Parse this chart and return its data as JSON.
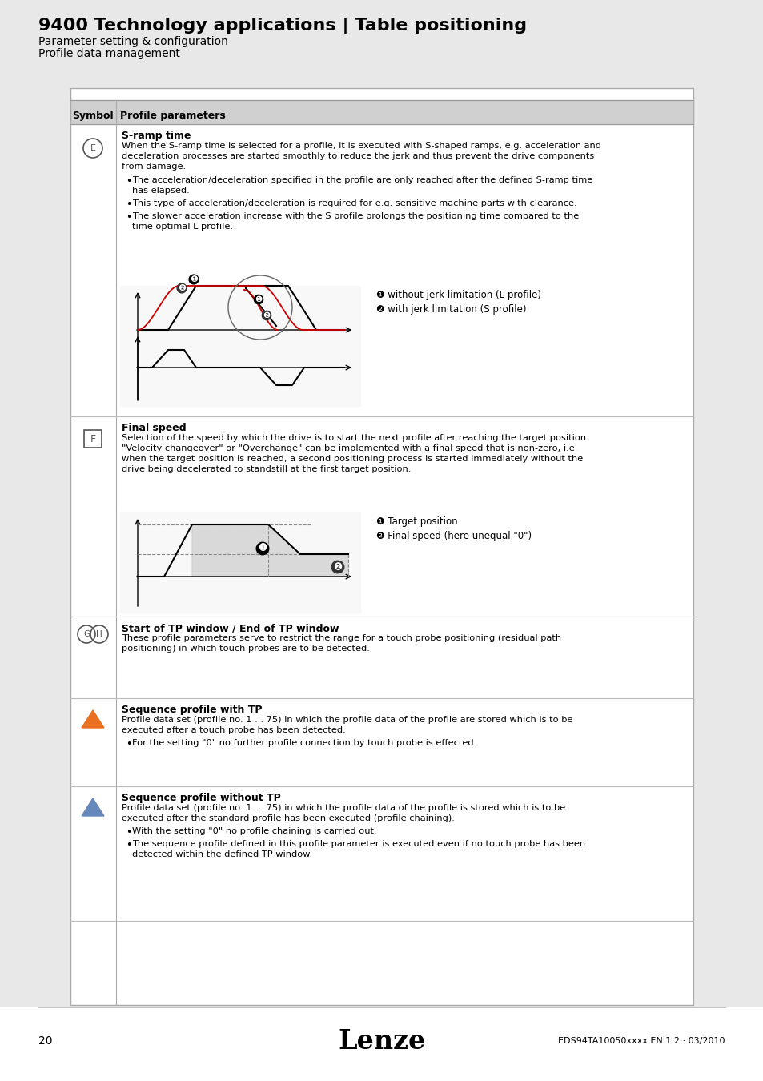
{
  "title": "9400 Technology applications | Table positioning",
  "subtitle1": "Parameter setting & configuration",
  "subtitle2": "Profile data management",
  "bg_color": "#e8e8e8",
  "page_bg": "#ffffff",
  "header_bg": "#d0d0d0",
  "row_e_title": "S-ramp time",
  "row_e_text": "When the S-ramp time is selected for a profile, it is executed with S-shaped ramps, e.g. acceleration and\ndeceleration processes are started smoothly to reduce the jerk and thus prevent the drive components\nfrom damage.",
  "row_e_bullets": [
    "The acceleration/deceleration specified in the profile are only reached after the defined S-ramp time\nhas elapsed.",
    "This type of acceleration/deceleration is required for e.g. sensitive machine parts with clearance.",
    "The slower acceleration increase with the S profile prolongs the positioning time compared to the\ntime optimal L profile."
  ],
  "legend1_1": "❶ without jerk limitation (L profile)",
  "legend1_2": "❷ with jerk limitation (S profile)",
  "row_f_title": "Final speed",
  "row_f_text": "Selection of the speed by which the drive is to start the next profile after reaching the target position.\n\"Velocity changeover\" or \"Overchange\" can be implemented with a final speed that is non-zero, i.e.\nwhen the target position is reached, a second positioning process is started immediately without the\ndrive being decelerated to standstill at the first target position:",
  "legend2_1": "❶ Target position",
  "legend2_2": "❷ Final speed (here unequal \"0\")",
  "row_gh_title": "Start of TP window / End of TP window",
  "row_gh_text": "These profile parameters serve to restrict the range for a touch probe positioning (residual path\npositioning) in which touch probes are to be detected.",
  "row_orange_title": "Sequence profile with TP",
  "row_orange_text": "Profile data set (profile no. 1 ... 75) in which the profile data of the profile are stored which is to be\nexecuted after a touch probe has been detected.",
  "row_orange_bullet": "For the setting \"0\" no further profile connection by touch probe is effected.",
  "row_blue_title": "Sequence profile without TP",
  "row_blue_text": "Profile data set (profile no. 1 ... 75) in which the profile data of the profile is stored which is to be\nexecuted after the standard profile has been executed (profile chaining).",
  "row_blue_bullets": [
    "With the setting \"0\" no profile chaining is carried out.",
    "The sequence profile defined in this profile parameter is executed even if no touch probe has been\ndetected within the defined TP window."
  ],
  "footer_page": "20",
  "footer_logo": "Lenze",
  "footer_doc": "EDS94TA10050xxxx EN 1.2 · 03/2010"
}
